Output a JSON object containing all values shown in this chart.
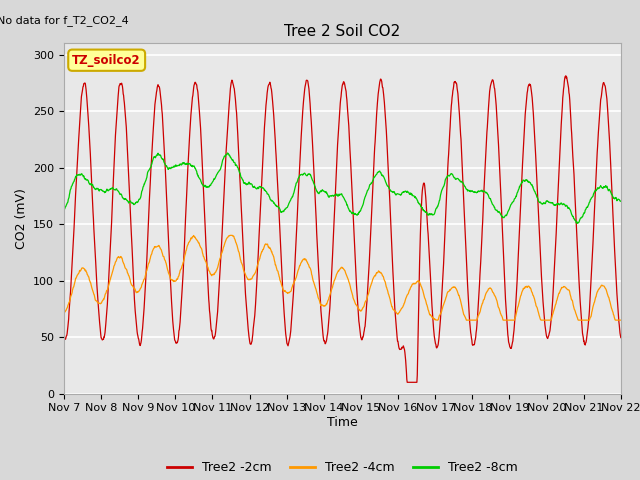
{
  "title": "Tree 2 Soil CO2",
  "no_data_text": "No data for f_T2_CO2_4",
  "ylabel": "CO2 (mV)",
  "xlabel": "Time",
  "tz_label": "TZ_soilco2",
  "ylim": [
    0,
    310
  ],
  "yticks": [
    0,
    50,
    100,
    150,
    200,
    250,
    300
  ],
  "legend_labels": [
    "Tree2 -2cm",
    "Tree2 -4cm",
    "Tree2 -8cm"
  ],
  "line_colors": [
    "#cc0000",
    "#ff9900",
    "#00cc00"
  ],
  "background_color": "#d8d8d8",
  "axes_bg_color": "#d8d8d8",
  "plot_bg_color": "#e8e8e8",
  "grid_color": "#ffffff",
  "tz_box_color": "#ffff99",
  "tz_box_border": "#ccaa00",
  "title_fontsize": 11,
  "label_fontsize": 9,
  "tick_fontsize": 8
}
